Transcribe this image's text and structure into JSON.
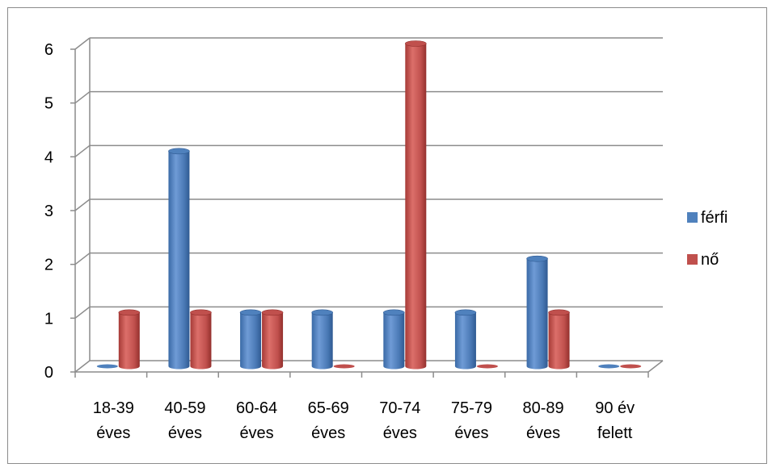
{
  "chart_data": {
    "type": "bar",
    "title": "",
    "xlabel": "",
    "ylabel": "",
    "ylim": [
      0,
      6
    ],
    "yticks": [
      0,
      1,
      2,
      3,
      4,
      5,
      6
    ],
    "grid": true,
    "legend_position": "right",
    "categories": [
      [
        "18-39",
        "éves"
      ],
      [
        "40-59",
        "éves"
      ],
      [
        "60-64",
        "éves"
      ],
      [
        "65-69",
        "éves"
      ],
      [
        "70-74",
        "éves"
      ],
      [
        "75-79",
        "éves"
      ],
      [
        "80-89",
        "éves"
      ],
      [
        "90 év",
        "felett"
      ]
    ],
    "series": [
      {
        "name": "férfi",
        "color": "#4f81bd",
        "values": [
          0,
          4,
          1,
          1,
          1,
          1,
          2,
          0
        ]
      },
      {
        "name": "nő",
        "color": "#c0504d",
        "values": [
          1,
          1,
          1,
          0,
          6,
          0,
          1,
          0
        ]
      }
    ]
  }
}
